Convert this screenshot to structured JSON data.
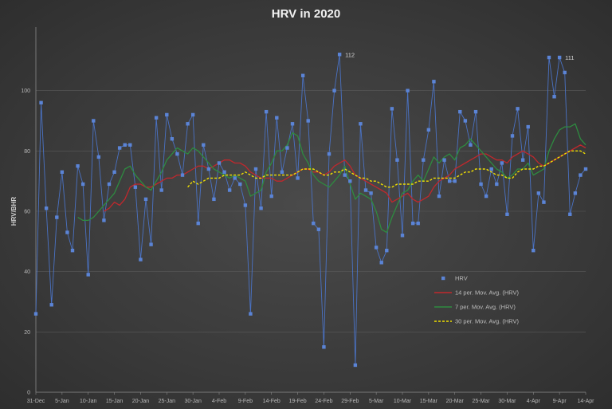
{
  "chart_data": {
    "type": "line",
    "title": "HRV in 2020",
    "ylabel": "HRV/BHR",
    "xlabel": "",
    "ylim": [
      0,
      120
    ],
    "yticks": [
      0,
      20,
      40,
      60,
      80,
      100
    ],
    "x_tick_labels": [
      "31-Dec",
      "5-Jan",
      "10-Jan",
      "15-Jan",
      "20-Jan",
      "25-Jan",
      "30-Jan",
      "4-Feb",
      "9-Feb",
      "14-Feb",
      "19-Feb",
      "24-Feb",
      "29-Feb",
      "5-Mar",
      "10-Mar",
      "15-Mar",
      "20-Mar",
      "25-Mar",
      "30-Mar",
      "4-Apr",
      "9-Apr",
      "14-Apr"
    ],
    "x_range_days": [
      0,
      105
    ],
    "grid": true,
    "legend_position": "right-middle",
    "annotations": [
      {
        "label": "112",
        "day": 58,
        "value": 112
      },
      {
        "label": "111",
        "day": 100,
        "value": 111
      }
    ],
    "colors": {
      "hrv": "#4a72c4",
      "ma14": "#c0282d",
      "ma7": "#2e8b40",
      "ma30": "#f2e100"
    },
    "series": [
      {
        "name": "HRV",
        "values": [
          26,
          96,
          61,
          29,
          58,
          73,
          53,
          47,
          75,
          69,
          39,
          90,
          78,
          57,
          69,
          73,
          81,
          82,
          82,
          68,
          44,
          64,
          49,
          91,
          67,
          92,
          84,
          79,
          72,
          89,
          92,
          56,
          82,
          74,
          64,
          76,
          73,
          67,
          71,
          69,
          62,
          26,
          74,
          61,
          93,
          65,
          91,
          73,
          81,
          89,
          71,
          105,
          90,
          56,
          54,
          15,
          79,
          100,
          112,
          72,
          70,
          9,
          89,
          67,
          66,
          48,
          43,
          47,
          94,
          77,
          52,
          100,
          56,
          56,
          77,
          87,
          103,
          65,
          77,
          70,
          70,
          93,
          90,
          82,
          93,
          69,
          65,
          74,
          69,
          76,
          59,
          85,
          94,
          77,
          88,
          47,
          66,
          63,
          111,
          98,
          111,
          106,
          59,
          66,
          72,
          74
        ]
      },
      {
        "name": "14 per. Mov. Avg. (HRV)",
        "values": [
          null,
          null,
          null,
          null,
          null,
          null,
          null,
          null,
          null,
          null,
          null,
          null,
          null,
          60,
          61,
          63,
          62,
          64,
          68,
          69,
          69,
          68,
          68,
          69,
          70,
          71,
          71,
          72,
          72,
          73,
          74,
          75,
          75,
          74,
          75,
          76,
          77,
          77,
          76,
          76,
          75,
          73,
          72,
          71,
          71,
          71,
          70,
          70,
          71,
          72,
          73,
          74,
          74,
          73,
          73,
          72,
          73,
          75,
          76,
          77,
          75,
          72,
          71,
          70,
          69,
          68,
          67,
          66,
          63,
          64,
          65,
          66,
          64,
          63,
          64,
          65,
          68,
          70,
          71,
          72,
          74,
          75,
          76,
          77,
          78,
          79,
          79,
          78,
          77,
          77,
          76,
          78,
          79,
          80,
          79,
          78,
          76,
          75,
          76,
          77,
          78,
          79,
          80,
          81,
          82,
          81
        ]
      },
      {
        "name": "7 per. Mov. Avg. (HRV)",
        "values": [
          null,
          null,
          null,
          null,
          null,
          null,
          null,
          null,
          58,
          57,
          57,
          58,
          60,
          62,
          64,
          66,
          70,
          74,
          75,
          72,
          70,
          68,
          67,
          70,
          73,
          77,
          79,
          81,
          80,
          79,
          81,
          80,
          78,
          76,
          74,
          73,
          72,
          71,
          72,
          71,
          70,
          65,
          66,
          67,
          73,
          76,
          80,
          80,
          82,
          86,
          85,
          79,
          76,
          72,
          70,
          69,
          68,
          70,
          72,
          75,
          69,
          64,
          66,
          65,
          64,
          60,
          54,
          53,
          58,
          62,
          66,
          67,
          70,
          72,
          70,
          74,
          78,
          76,
          78,
          79,
          77,
          81,
          82,
          84,
          82,
          80,
          78,
          76,
          74,
          73,
          71,
          72,
          74,
          74,
          76,
          72,
          73,
          74,
          80,
          84,
          87,
          88,
          88,
          89,
          84,
          82
        ]
      },
      {
        "name": "30 per. Mov. Avg. (HRV)",
        "values": [
          null,
          null,
          null,
          null,
          null,
          null,
          null,
          null,
          null,
          null,
          null,
          null,
          null,
          null,
          null,
          null,
          null,
          null,
          null,
          null,
          null,
          null,
          null,
          null,
          null,
          null,
          null,
          null,
          null,
          68,
          70,
          69,
          70,
          71,
          71,
          71,
          72,
          72,
          72,
          72,
          73,
          72,
          71,
          71,
          72,
          72,
          72,
          72,
          72,
          72,
          73,
          74,
          74,
          74,
          73,
          72,
          72,
          73,
          73,
          74,
          73,
          72,
          71,
          71,
          70,
          70,
          69,
          68,
          68,
          69,
          69,
          69,
          69,
          70,
          70,
          70,
          71,
          71,
          71,
          71,
          71,
          72,
          73,
          73,
          74,
          74,
          74,
          73,
          72,
          72,
          71,
          71,
          73,
          74,
          74,
          74,
          75,
          75,
          76,
          77,
          78,
          79,
          80,
          80,
          80,
          79
        ]
      }
    ]
  }
}
